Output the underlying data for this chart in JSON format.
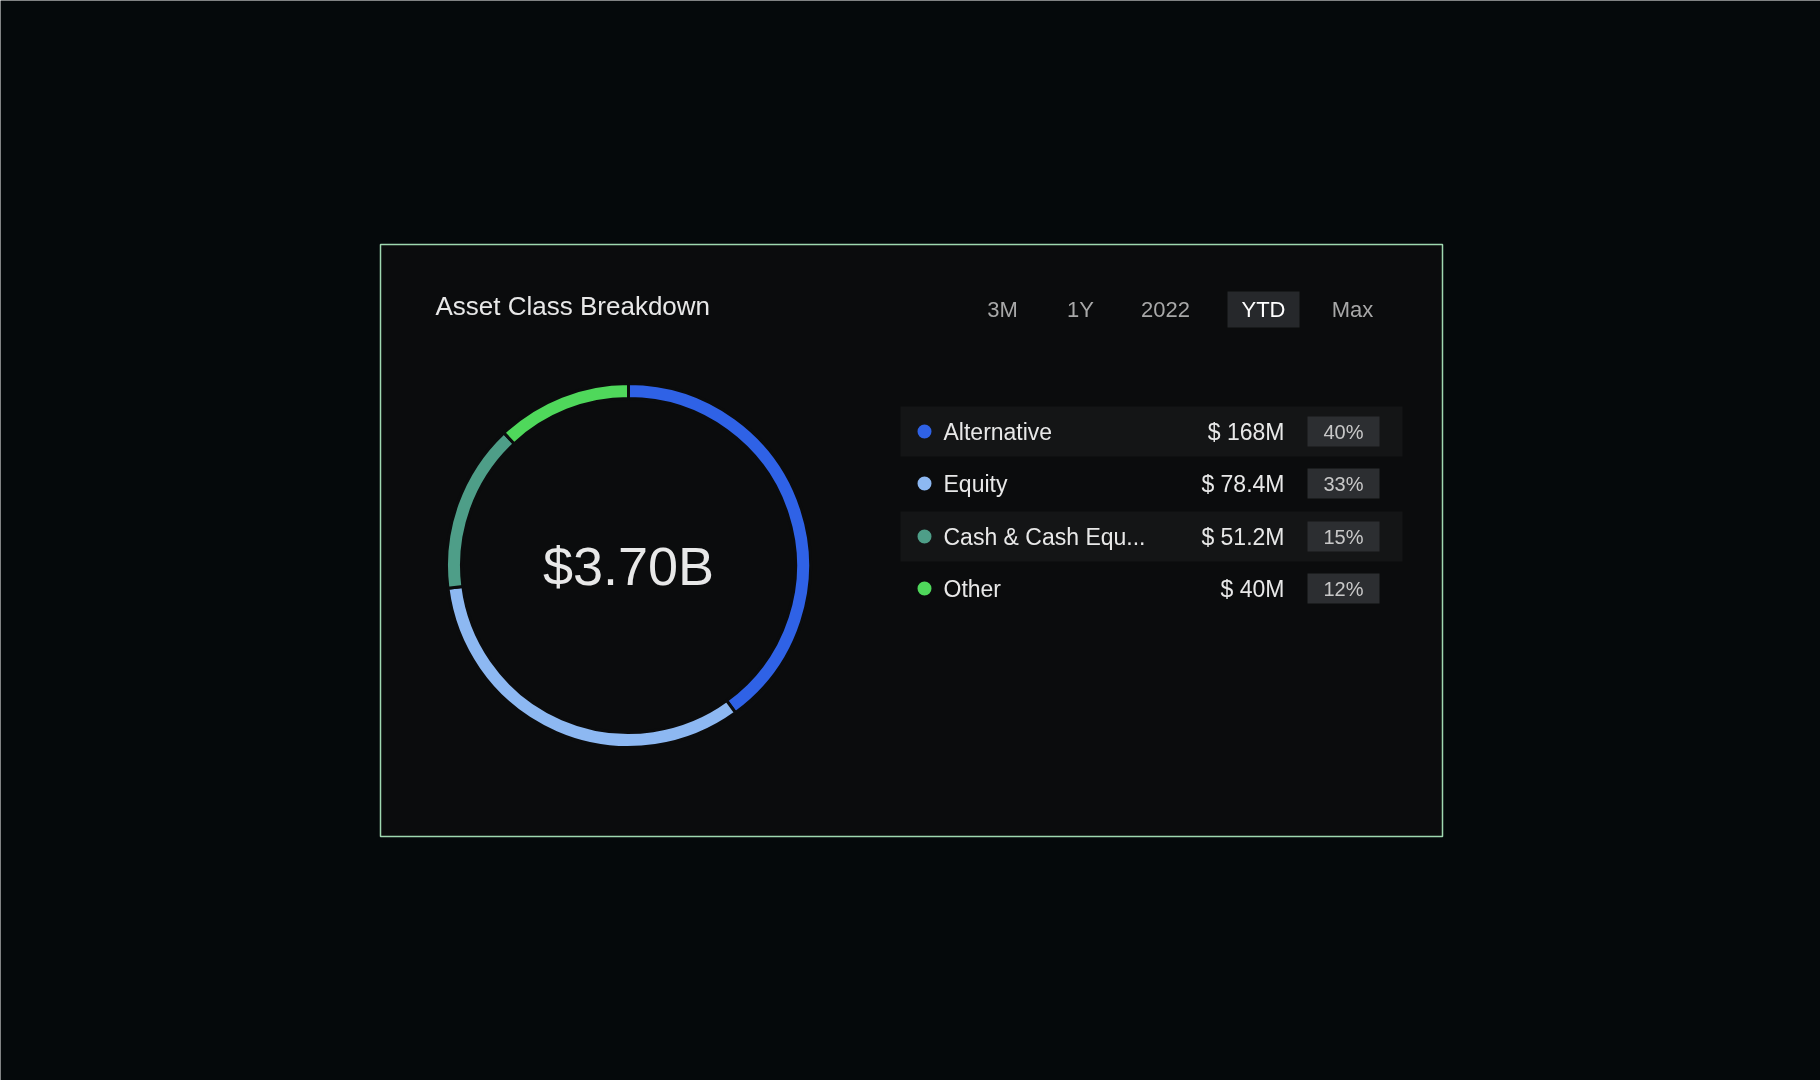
{
  "chart_data": {
    "type": "donut",
    "title": "Asset Class Breakdown",
    "categories": [
      "Alternative",
      "Equity",
      "Cash & Cash Equ...",
      "Other"
    ],
    "values": [
      40,
      33,
      15,
      12
    ],
    "colors": [
      "#2f62e6",
      "#8db8f2",
      "#4e9e88",
      "#4fd85b"
    ],
    "value_labels": [
      "40%",
      "33%",
      "15%",
      "12%"
    ],
    "legend": "right",
    "annotations": [
      "$3.70B",
      "3M",
      "1Y",
      "2022",
      "YTD",
      "Max",
      "$ 168M",
      "$ 78.4M",
      "$ 51.2M",
      "$ 40M"
    ]
  }
}
